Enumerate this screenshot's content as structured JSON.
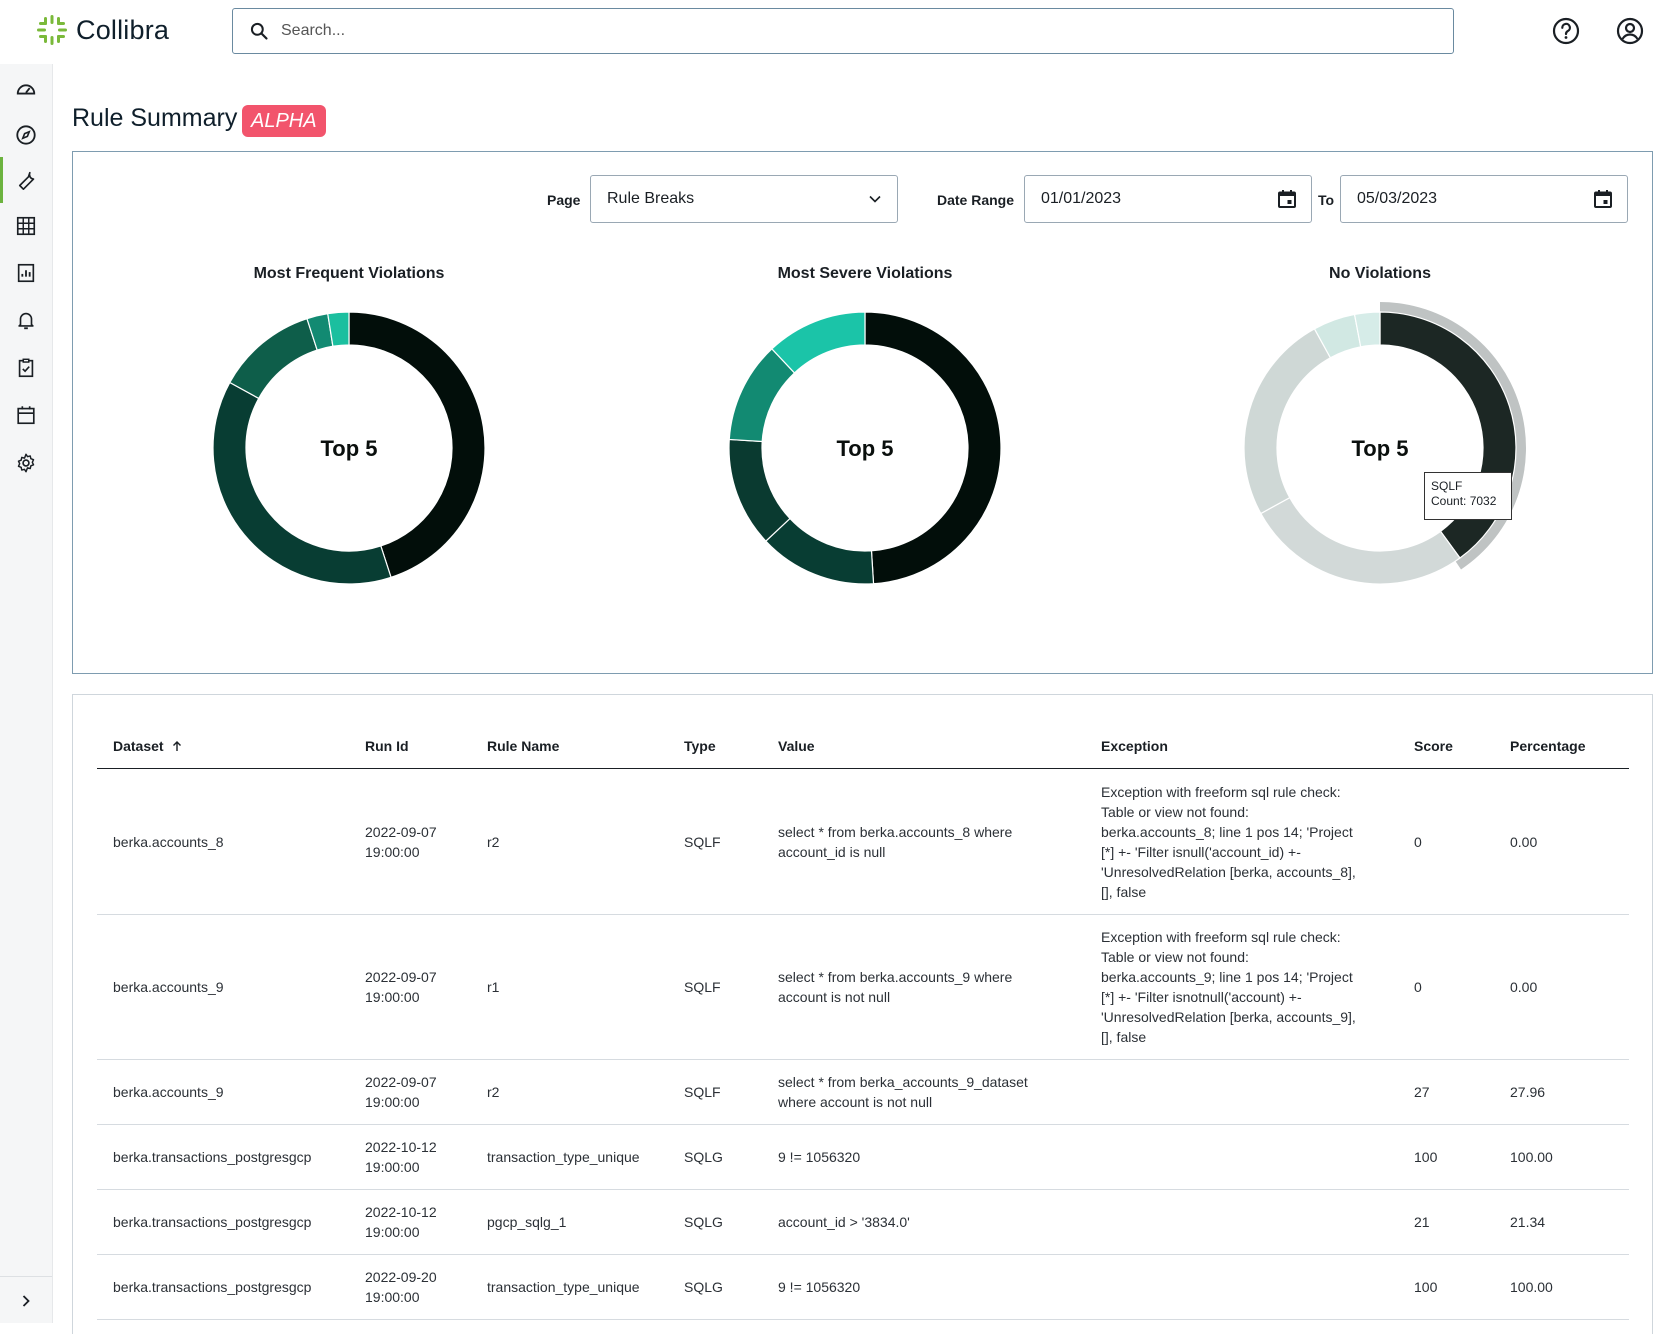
{
  "header": {
    "brand": "Collibra",
    "search_placeholder": "Search..."
  },
  "page": {
    "title": "Rule Summary",
    "badge": "ALPHA"
  },
  "filters": {
    "page_label": "Page",
    "page_value": "Rule Breaks",
    "date_range_label": "Date Range",
    "date_from": "01/01/2023",
    "to_label": "To",
    "date_to": "05/03/2023"
  },
  "chart_data": [
    {
      "type": "pie",
      "title": "Most Frequent Violations",
      "center_label": "Top 5",
      "values": [
        45,
        38,
        12,
        2.5,
        2.5
      ],
      "colors": [
        "#020e0a",
        "#083d33",
        "#0e5e4a",
        "#128a72",
        "#1bbf9f"
      ]
    },
    {
      "type": "pie",
      "title": "Most Severe Violations",
      "center_label": "Top 5",
      "values": [
        49,
        14,
        13,
        12,
        12
      ],
      "colors": [
        "#020e0a",
        "#083d33",
        "#0a3a30",
        "#128a72",
        "#1bc4a8"
      ]
    },
    {
      "type": "pie",
      "title": "No Violations",
      "center_label": "Top 5",
      "values": [
        40,
        27,
        25,
        5,
        3
      ],
      "colors": [
        "#1c2724",
        "#d2d9d8",
        "#cfd8d6",
        "#d1e8e3",
        "#d6ece8"
      ],
      "tooltip": {
        "label": "SQLF",
        "count_text": "Count: 7032"
      }
    }
  ],
  "table": {
    "columns": [
      "Dataset",
      "Run Id",
      "Rule Name",
      "Type",
      "Value",
      "Exception",
      "Score",
      "Percentage"
    ],
    "rows": [
      {
        "dataset": "berka.accounts_8",
        "run_id": [
          "2022-09-07",
          "19:00:00"
        ],
        "rule": "r2",
        "type": "SQLF",
        "value": [
          "select * from berka.accounts_8 where",
          "account_id is null"
        ],
        "exception": [
          "Exception with freeform sql rule check:",
          "Table or view not found:",
          "berka.accounts_8; line 1 pos 14; 'Project",
          "[*] +- 'Filter isnull('account_id) +-",
          "'UnresolvedRelation [berka, accounts_8],",
          "[], false"
        ],
        "score": "0",
        "pct": "0.00"
      },
      {
        "dataset": "berka.accounts_9",
        "run_id": [
          "2022-09-07",
          "19:00:00"
        ],
        "rule": "r1",
        "type": "SQLF",
        "value": [
          "select * from berka.accounts_9 where",
          "account is not null"
        ],
        "exception": [
          "Exception with freeform sql rule check:",
          "Table or view not found:",
          "berka.accounts_9; line 1 pos 14; 'Project",
          "[*] +- 'Filter isnotnull('account) +-",
          "'UnresolvedRelation [berka, accounts_9],",
          "[], false"
        ],
        "score": "0",
        "pct": "0.00"
      },
      {
        "dataset": "berka.accounts_9",
        "run_id": [
          "2022-09-07",
          "19:00:00"
        ],
        "rule": "r2",
        "type": "SQLF",
        "value": [
          "select * from berka_accounts_9_dataset",
          "where account is not null"
        ],
        "exception": [],
        "score": "27",
        "pct": "27.96"
      },
      {
        "dataset": "berka.transactions_postgresgcp",
        "run_id": [
          "2022-10-12",
          "19:00:00"
        ],
        "rule": "transaction_type_unique",
        "type": "SQLG",
        "value": [
          "9 != 1056320"
        ],
        "exception": [],
        "score": "100",
        "pct": "100.00"
      },
      {
        "dataset": "berka.transactions_postgresgcp",
        "run_id": [
          "2022-10-12",
          "19:00:00"
        ],
        "rule": "pgcp_sqlg_1",
        "type": "SQLG",
        "value": [
          "account_id > '3834.0'"
        ],
        "exception": [],
        "score": "21",
        "pct": "21.34"
      },
      {
        "dataset": "berka.transactions_postgresgcp",
        "run_id": [
          "2022-09-20",
          "19:00:00"
        ],
        "rule": "transaction_type_unique",
        "type": "SQLG",
        "value": [
          "9 != 1056320"
        ],
        "exception": [],
        "score": "100",
        "pct": "100.00"
      }
    ]
  }
}
